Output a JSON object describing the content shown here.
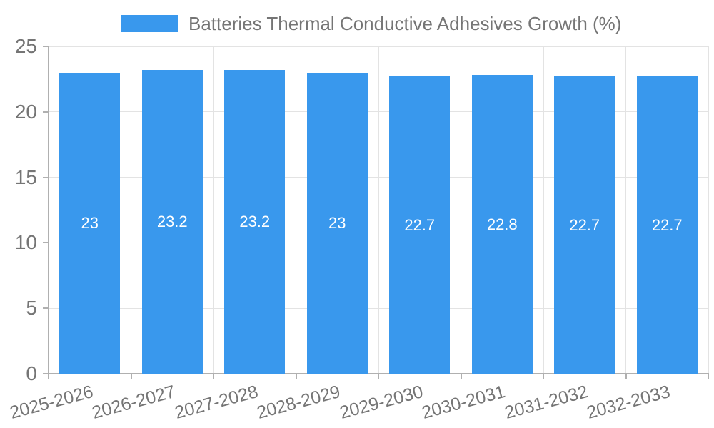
{
  "legend": {
    "label": "Batteries Thermal Conductive Adhesives Growth (%)"
  },
  "chart_data": {
    "type": "bar",
    "title": "Batteries Thermal Conductive Adhesives Growth (%)",
    "categories": [
      "2025-2026",
      "2026-2027",
      "2027-2028",
      "2028-2029",
      "2029-2030",
      "2030-2031",
      "2031-2032",
      "2032-2033"
    ],
    "values": [
      23,
      23.2,
      23.2,
      23,
      22.7,
      22.8,
      22.7,
      22.7
    ],
    "value_labels": [
      "23",
      "23.2",
      "23.2",
      "23",
      "22.7",
      "22.8",
      "22.7",
      "22.7"
    ],
    "xlabel": "",
    "ylabel": "",
    "ylim": [
      0,
      25
    ],
    "yticks": [
      0,
      5,
      10,
      15,
      20,
      25
    ],
    "grid": true,
    "legend_position": "top",
    "colors": {
      "bar": "#3998ED",
      "value_label": "#ffffff",
      "axis": "#b0b0b0",
      "grid": "#e3e3e3",
      "text": "#757575",
      "background": "#ffffff"
    }
  }
}
